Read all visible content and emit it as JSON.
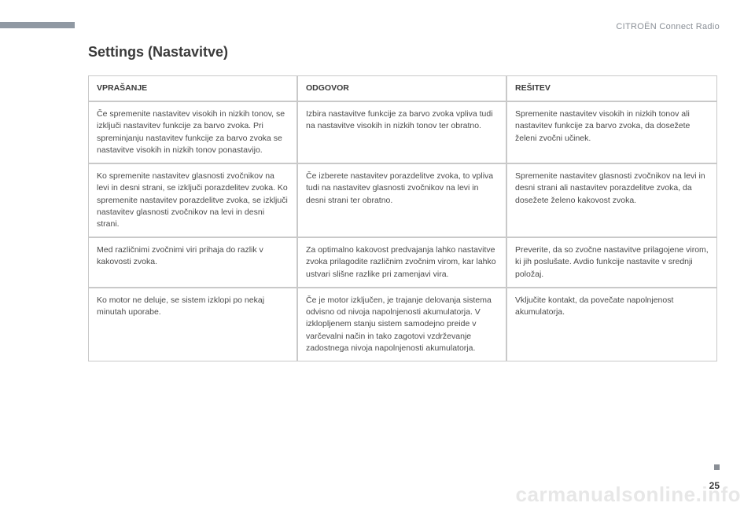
{
  "breadcrumb": "CITROËN Connect Radio",
  "page_title": "Settings (Nastavitve)",
  "table": {
    "headers": [
      "VPRAŠANJE",
      "ODGOVOR",
      "REŠITEV"
    ],
    "rows": [
      [
        "Če spremenite nastavitev visokih in nizkih tonov, se izključi nastavitev funkcije za barvo zvoka. Pri spreminjanju nastavitev funkcije za barvo zvoka se nastavitve visokih in nizkih tonov ponastavijo.",
        "Izbira nastavitve funkcije za barvo zvoka vpliva tudi na nastavitve visokih in nizkih tonov ter obratno.",
        "Spremenite nastavitev visokih in nizkih tonov ali nastavitev funkcije za barvo zvoka, da dosežete želeni zvočni učinek."
      ],
      [
        "Ko spremenite nastavitev glasnosti zvočnikov na levi in desni strani, se izključi porazdelitev zvoka. Ko spremenite nastavitev porazdelitve zvoka, se izključi nastavitev glasnosti zvočnikov na levi in desni strani.",
        "Če izberete nastavitev porazdelitve zvoka, to vpliva tudi na nastavitev glasnosti zvočnikov na levi in desni strani ter obratno.",
        "Spremenite nastavitev glasnosti zvočnikov na levi in desni strani ali nastavitev porazdelitve zvoka, da dosežete želeno kakovost zvoka."
      ],
      [
        "Med različnimi zvočnimi viri prihaja do razlik v kakovosti zvoka.",
        "Za optimalno kakovost predvajanja lahko nastavitve zvoka prilagodite različnim zvočnim virom, kar lahko ustvari slišne razlike pri zamenjavi vira.",
        "Preverite, da so zvočne nastavitve prilagojene virom, ki jih poslušate. Avdio funkcije nastavite v srednji položaj."
      ],
      [
        "Ko motor ne deluje, se sistem izklopi po nekaj minutah uporabe.",
        "Če je motor izključen, je trajanje delovanja sistema odvisno od nivoja napolnjenosti akumulatorja.\nV izklopljenem stanju sistem samodejno preide v varčevalni način in tako zagotovi vzdrževanje zadostnega nivoja napolnjenosti akumulatorja.",
        "Vključite kontakt, da povečate napolnjenost akumulatorja."
      ]
    ]
  },
  "page_number": "25",
  "watermark": "carmanualsonline.info",
  "colors": {
    "accent_bar": "#9099a3",
    "breadcrumb_text": "#8a8f96",
    "title_text": "#3a3a3a",
    "cell_text": "#4a4a4a",
    "border": "#c9c9c9",
    "dot": "#8a8f96",
    "watermark": "rgba(120,120,120,0.18)",
    "background": "#ffffff"
  }
}
